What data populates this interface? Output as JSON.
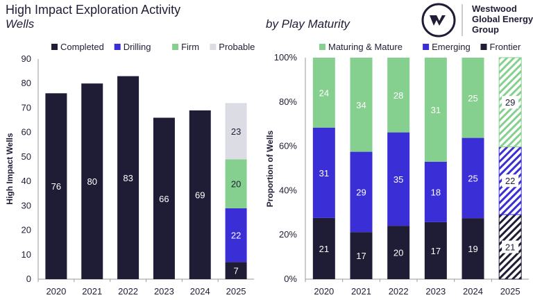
{
  "brand": {
    "name_line1": "Westwood",
    "name_line2": "Global Energy",
    "name_line3": "Group",
    "logo_icon": "westwood-w-logo"
  },
  "colors": {
    "completed": "#1f1c35",
    "drilling": "#3a2fd6",
    "firm": "#86d08f",
    "probable": "#dcdce4"
  },
  "chart_data": [
    {
      "type": "bar",
      "stacked": true,
      "title": "High Impact Exploration Activity",
      "subtitle": "Wells",
      "ylabel": "High Impact Wells",
      "xlabel": "",
      "ylim": [
        0,
        90
      ],
      "yticks": [
        0,
        10,
        20,
        30,
        40,
        50,
        60,
        70,
        80,
        90
      ],
      "legend": "top",
      "categories": [
        "2020",
        "2021",
        "2022",
        "2023",
        "2024",
        "2025"
      ],
      "series": [
        {
          "name": "Completed",
          "color": "#1f1c35",
          "values": [
            76,
            80,
            83,
            66,
            69,
            7
          ]
        },
        {
          "name": "Drilling",
          "color": "#3a2fd6",
          "values": [
            0,
            0,
            0,
            0,
            0,
            22
          ]
        },
        {
          "name": "Firm",
          "color": "#86d08f",
          "values": [
            0,
            0,
            0,
            0,
            0,
            20
          ]
        },
        {
          "name": "Probable",
          "color": "#dcdce4",
          "values": [
            0,
            0,
            0,
            0,
            0,
            23
          ]
        }
      ]
    },
    {
      "type": "bar",
      "stacked": true,
      "normalized": true,
      "subtitle": "by Play Maturity",
      "ylabel": "Proportion of Wells",
      "xlabel": "",
      "ylim": [
        0,
        100
      ],
      "yticks": [
        "0%",
        "20%",
        "40%",
        "60%",
        "80%",
        "100%"
      ],
      "legend": "top",
      "categories": [
        "2020",
        "2021",
        "2022",
        "2023",
        "2024",
        "2025"
      ],
      "hatched_categories": [
        "2025"
      ],
      "series": [
        {
          "name": "Frontier",
          "color": "#1f1c35",
          "values": [
            21,
            17,
            20,
            17,
            19,
            21
          ]
        },
        {
          "name": "Emerging",
          "color": "#3a2fd6",
          "values": [
            31,
            29,
            35,
            18,
            25,
            22
          ]
        },
        {
          "name": "Maturing & Mature",
          "color": "#86d08f",
          "values": [
            24,
            34,
            28,
            31,
            25,
            29
          ]
        }
      ],
      "legend_order": [
        "Maturing & Mature",
        "Emerging",
        "Frontier"
      ]
    }
  ]
}
